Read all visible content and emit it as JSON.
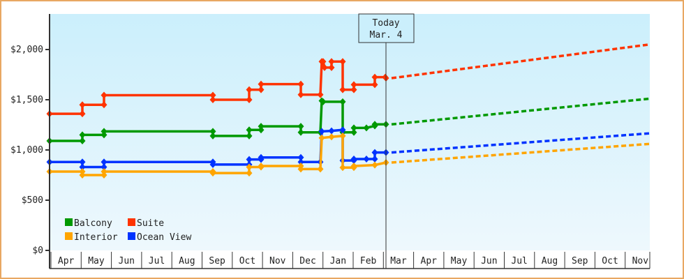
{
  "chart_data": {
    "type": "line",
    "title": "",
    "xlabel": "",
    "ylabel": "",
    "ylim": [
      0,
      2300
    ],
    "yticks": [
      "$0",
      "$500",
      "$1,000",
      "$1,500",
      "$2,000"
    ],
    "ytick_values": [
      0,
      500,
      1000,
      1500,
      2000
    ],
    "months": [
      "Apr",
      "May",
      "Jun",
      "Jul",
      "Aug",
      "Sep",
      "Oct",
      "Nov",
      "Dec",
      "Jan",
      "Feb",
      "Mar",
      "Apr",
      "May",
      "Jun",
      "Jul",
      "Aug",
      "Sep",
      "Oct",
      "Nov"
    ],
    "today_marker": {
      "line1": "Today",
      "line2": "Mar. 4"
    },
    "legend": [
      {
        "name": "Balcony",
        "color": "#009900"
      },
      {
        "name": "Suite",
        "color": "#ff3300"
      },
      {
        "name": "Interior",
        "color": "#ffa500"
      },
      {
        "name": "Ocean View",
        "color": "#0033ff"
      }
    ],
    "series": [
      {
        "name": "Suite",
        "color": "#ff3300",
        "points": [
          [
            71,
            1360
          ],
          [
            118,
            1360
          ],
          [
            118,
            1450
          ],
          [
            149,
            1450
          ],
          [
            149,
            1545
          ],
          [
            305,
            1545
          ],
          [
            305,
            1500
          ],
          [
            357,
            1500
          ],
          [
            357,
            1600
          ],
          [
            374,
            1600
          ],
          [
            374,
            1655
          ],
          [
            431,
            1655
          ],
          [
            431,
            1550
          ],
          [
            459,
            1550
          ],
          [
            461,
            1880
          ],
          [
            463,
            1880
          ],
          [
            465,
            1820
          ],
          [
            475,
            1820
          ],
          [
            475,
            1880
          ],
          [
            491,
            1880
          ],
          [
            491,
            1600
          ],
          [
            507,
            1600
          ],
          [
            507,
            1650
          ],
          [
            537,
            1650
          ],
          [
            537,
            1725
          ],
          [
            552,
            1725
          ],
          [
            553,
            1715
          ]
        ],
        "forecast": [
          [
            553,
            1715
          ],
          [
            930,
            2050
          ]
        ]
      },
      {
        "name": "Balcony",
        "color": "#009900",
        "points": [
          [
            71,
            1090
          ],
          [
            118,
            1090
          ],
          [
            118,
            1150
          ],
          [
            149,
            1150
          ],
          [
            149,
            1185
          ],
          [
            305,
            1185
          ],
          [
            305,
            1140
          ],
          [
            357,
            1140
          ],
          [
            357,
            1200
          ],
          [
            374,
            1200
          ],
          [
            374,
            1235
          ],
          [
            431,
            1235
          ],
          [
            431,
            1175
          ],
          [
            459,
            1175
          ],
          [
            461,
            1490
          ],
          [
            463,
            1480
          ],
          [
            491,
            1480
          ],
          [
            491,
            1175
          ],
          [
            507,
            1175
          ],
          [
            507,
            1220
          ],
          [
            525,
            1220
          ],
          [
            537,
            1240
          ],
          [
            537,
            1255
          ],
          [
            553,
            1255
          ]
        ],
        "forecast": [
          [
            553,
            1255
          ],
          [
            930,
            1510
          ]
        ]
      },
      {
        "name": "Ocean View",
        "color": "#0033ff",
        "points": [
          [
            71,
            880
          ],
          [
            118,
            880
          ],
          [
            118,
            830
          ],
          [
            149,
            830
          ],
          [
            149,
            880
          ],
          [
            305,
            880
          ],
          [
            305,
            855
          ],
          [
            357,
            855
          ],
          [
            357,
            905
          ],
          [
            374,
            905
          ],
          [
            374,
            925
          ],
          [
            431,
            925
          ],
          [
            431,
            880
          ],
          [
            459,
            880
          ],
          [
            461,
            1185
          ],
          [
            475,
            1190
          ],
          [
            491,
            1200
          ],
          [
            491,
            895
          ],
          [
            507,
            895
          ],
          [
            507,
            910
          ],
          [
            525,
            910
          ],
          [
            537,
            910
          ],
          [
            537,
            975
          ],
          [
            553,
            975
          ]
        ],
        "forecast": [
          [
            553,
            975
          ],
          [
            930,
            1165
          ]
        ]
      },
      {
        "name": "Interior",
        "color": "#ffa500",
        "points": [
          [
            71,
            785
          ],
          [
            118,
            785
          ],
          [
            118,
            750
          ],
          [
            149,
            750
          ],
          [
            149,
            785
          ],
          [
            305,
            785
          ],
          [
            305,
            770
          ],
          [
            357,
            770
          ],
          [
            357,
            830
          ],
          [
            374,
            830
          ],
          [
            374,
            840
          ],
          [
            431,
            840
          ],
          [
            431,
            810
          ],
          [
            459,
            810
          ],
          [
            461,
            1120
          ],
          [
            475,
            1130
          ],
          [
            491,
            1140
          ],
          [
            491,
            825
          ],
          [
            507,
            825
          ],
          [
            507,
            840
          ],
          [
            537,
            850
          ],
          [
            553,
            875
          ]
        ],
        "forecast": [
          [
            553,
            875
          ],
          [
            930,
            1060
          ]
        ]
      }
    ]
  }
}
